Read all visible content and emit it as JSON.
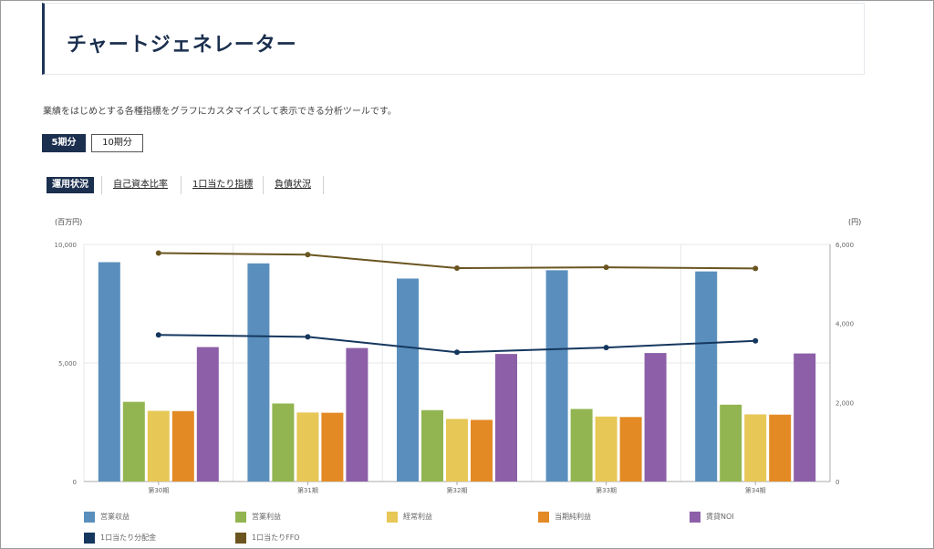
{
  "page": {
    "title": "チャートジェネレーター",
    "description": "業績をはじめとする各種指標をグラフにカスタマイズして表示できる分析ツールです。"
  },
  "period_buttons": [
    {
      "label": "5期分",
      "active": true
    },
    {
      "label": "10期分",
      "active": false
    }
  ],
  "tabs": [
    {
      "label": "運用状況",
      "active": true
    },
    {
      "label": "自己資本比率",
      "active": false
    },
    {
      "label": "1口当たり指標",
      "active": false
    },
    {
      "label": "負債状況",
      "active": false
    }
  ],
  "colors": {
    "revenue": "#5a8fbd",
    "op_profit": "#92b551",
    "ord_profit": "#e7c756",
    "net_profit": "#e38a24",
    "rental_noi": "#8c5fa8",
    "dist": "#15375e",
    "ffo": "#6a5520",
    "grid": "#e7e7e7",
    "axis": "#aaaaaa"
  },
  "chart_data": {
    "type": "bar",
    "title": "",
    "xlabel": "",
    "ylabel": "(百万円)",
    "ylabel_right": "(円)",
    "categories": [
      "第30期",
      "第31期",
      "第32期",
      "第33期",
      "第34期"
    ],
    "ylim": [
      0,
      10000
    ],
    "ylim_right": [
      0,
      6000
    ],
    "y_ticks": [
      0,
      5000,
      10000
    ],
    "y_tick_labels": [
      "0",
      "5,000",
      "10,000"
    ],
    "y_right_ticks": [
      0,
      2000,
      4000,
      6000
    ],
    "y_right_tick_labels": [
      "0",
      "2,000",
      "4,000",
      "6,000"
    ],
    "grid": true,
    "legend_position": "bottom",
    "series": [
      {
        "name": "営業収益",
        "kind": "bar",
        "axis": "left",
        "color_key": "revenue",
        "values": [
          9250,
          9200,
          8560,
          8910,
          8860
        ]
      },
      {
        "name": "営業利益",
        "kind": "bar",
        "axis": "left",
        "color_key": "op_profit",
        "values": [
          3360,
          3290,
          3010,
          3060,
          3240
        ]
      },
      {
        "name": "経常利益",
        "kind": "bar",
        "axis": "left",
        "color_key": "ord_profit",
        "values": [
          2980,
          2910,
          2640,
          2740,
          2830
        ]
      },
      {
        "name": "当期純利益",
        "kind": "bar",
        "axis": "left",
        "color_key": "net_profit",
        "values": [
          2970,
          2900,
          2600,
          2720,
          2820
        ]
      },
      {
        "name": "賃貸NOI",
        "kind": "bar",
        "axis": "left",
        "color_key": "rental_noi",
        "values": [
          5670,
          5630,
          5380,
          5420,
          5400
        ]
      },
      {
        "name": "1口当たり分配金",
        "kind": "line",
        "axis": "right",
        "color_key": "dist",
        "values": [
          3710,
          3660,
          3270,
          3390,
          3560
        ]
      },
      {
        "name": "1口当たりFFO",
        "kind": "line",
        "axis": "right",
        "color_key": "ffo",
        "values": [
          5780,
          5740,
          5400,
          5420,
          5390
        ]
      }
    ]
  }
}
